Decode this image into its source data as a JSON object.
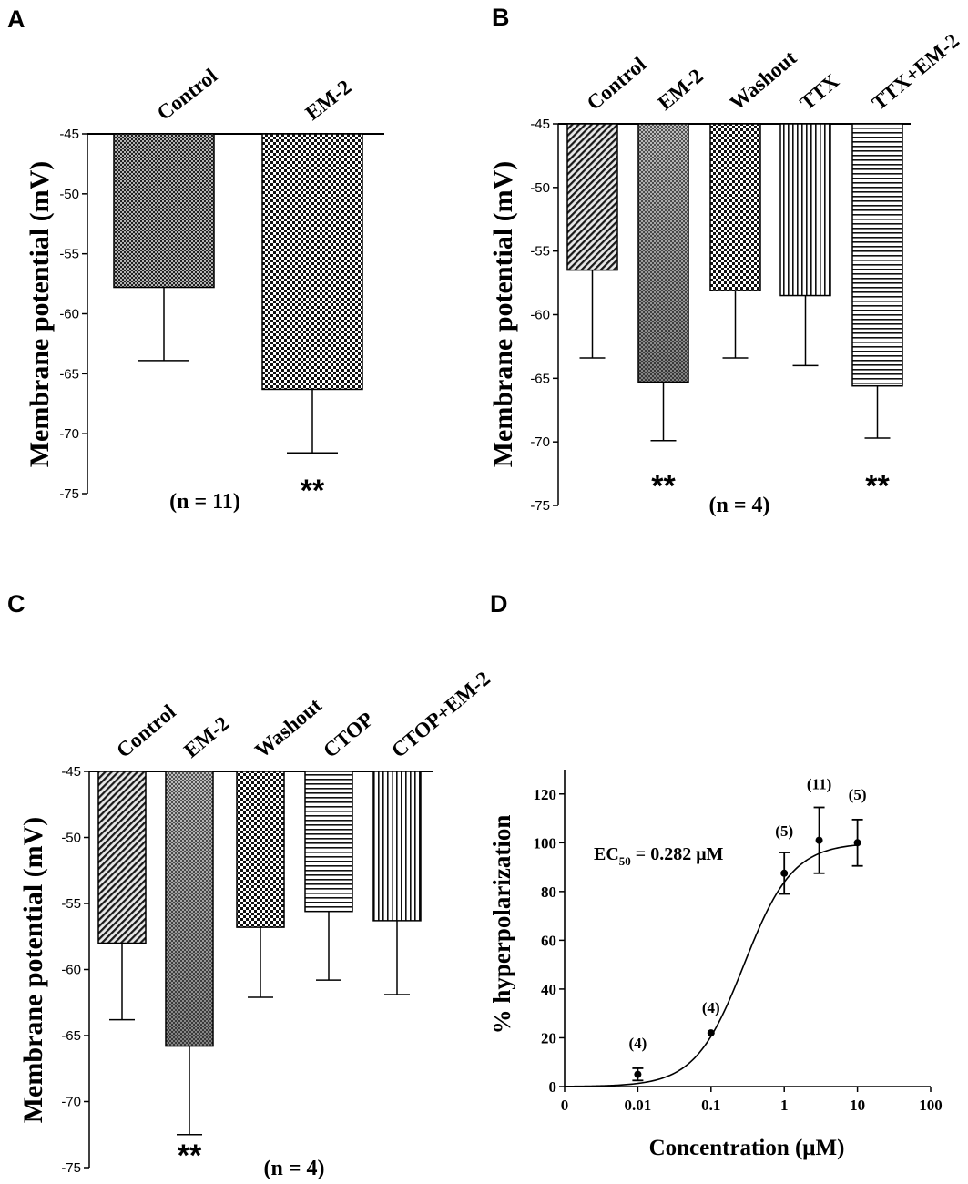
{
  "chart_data": [
    {
      "panel": "A",
      "type": "bar",
      "categories": [
        "Control",
        "EM-2"
      ],
      "values": [
        -57.8,
        -66.3
      ],
      "errors": [
        6.1,
        5.3
      ],
      "patterns": [
        "fine-check",
        "check"
      ],
      "ylabel": "Membrane potential (mV)",
      "ylim": [
        -75,
        -45
      ],
      "yticks": [
        -45,
        -50,
        -55,
        -60,
        -65,
        -70,
        -75
      ],
      "n_label": "(n = 11)",
      "significance": [
        "",
        "**"
      ]
    },
    {
      "panel": "B",
      "type": "bar",
      "categories": [
        "Control",
        "EM-2",
        "Washout",
        "TTX",
        "TTX+EM-2"
      ],
      "values": [
        -56.5,
        -65.3,
        -58.1,
        -58.5,
        -65.6
      ],
      "errors": [
        6.9,
        4.6,
        5.3,
        5.5,
        4.1
      ],
      "patterns": [
        "diag",
        "grad-check",
        "check",
        "vert",
        "horiz"
      ],
      "ylabel": "Membrane potential (mV)",
      "ylim": [
        -75,
        -45
      ],
      "yticks": [
        -45,
        -50,
        -55,
        -60,
        -65,
        -70,
        -75
      ],
      "n_label": "(n = 4)",
      "significance": [
        "",
        "**",
        "",
        "",
        "**"
      ]
    },
    {
      "panel": "C",
      "type": "bar",
      "categories": [
        "Control",
        "EM-2",
        "Washout",
        "CTOP",
        "CTOP+EM-2"
      ],
      "values": [
        -58.0,
        -65.8,
        -56.8,
        -55.6,
        -56.3
      ],
      "errors": [
        5.8,
        6.7,
        5.3,
        5.2,
        5.6
      ],
      "patterns": [
        "diag",
        "grad-check",
        "check",
        "horiz",
        "vert"
      ],
      "ylabel": "Membrane potential (mV)",
      "ylim": [
        -75,
        -45
      ],
      "yticks": [
        -45,
        -50,
        -55,
        -60,
        -65,
        -70,
        -75
      ],
      "n_label": "(n = 4)",
      "significance": [
        "",
        "**",
        "",
        "",
        ""
      ]
    },
    {
      "panel": "D",
      "type": "scatter",
      "x": [
        0.01,
        0.1,
        1,
        3,
        10
      ],
      "y": [
        5,
        22,
        87.5,
        101,
        100
      ],
      "errors": [
        2.5,
        0,
        8.5,
        13.5,
        9.5
      ],
      "n_labels": [
        "(4)",
        "(4)",
        "(5)",
        "(11)",
        "(5)"
      ],
      "xscale": "log",
      "xticks": [
        "0",
        "0.01",
        "0.1",
        "1",
        "10",
        "100"
      ],
      "ylim": [
        0,
        130
      ],
      "yticks": [
        0,
        20,
        40,
        60,
        80,
        100,
        120
      ],
      "xlabel": "Concentration (μM)",
      "ylabel": "% hyperpolarization",
      "fit": {
        "type": "hill",
        "ec50": 0.282,
        "hill": 1.3,
        "max": 100
      },
      "ec50_prefix": "EC",
      "ec50_sub": "50",
      "ec50_value": " = 0.282 μM"
    }
  ],
  "panel_letters": [
    "A",
    "B",
    "C",
    "D"
  ]
}
